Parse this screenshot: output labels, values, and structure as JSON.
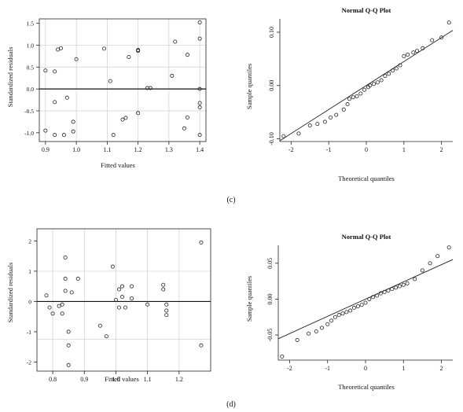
{
  "captions": {
    "c": "(c)",
    "d": "(d)"
  },
  "chart_data": [
    {
      "id": "c_resid",
      "type": "scatter",
      "title": "",
      "xlabel": "Fitted values",
      "ylabel": "Standardized residuals",
      "xlim": [
        0.88,
        1.42
      ],
      "ylim": [
        -1.2,
        1.6
      ],
      "xticks": [
        "0.9",
        "1.0",
        "1.1",
        "1.2",
        "1.3",
        "1.4"
      ],
      "yticks": [
        "-1.0",
        "-0.5",
        "0.0",
        "0.5",
        "1.0",
        "1.5"
      ],
      "grid_x": [
        0.9,
        1.0,
        1.1,
        1.2,
        1.3,
        1.4
      ],
      "grid_y": [
        -0.5,
        0.5,
        1.0
      ],
      "reference_line_y": 0,
      "points": [
        [
          0.9,
          0.42
        ],
        [
          0.9,
          -0.95
        ],
        [
          0.93,
          0.4
        ],
        [
          0.94,
          0.9
        ],
        [
          0.95,
          0.93
        ],
        [
          0.93,
          -0.3
        ],
        [
          0.97,
          -0.2
        ],
        [
          0.93,
          -1.05
        ],
        [
          0.96,
          -1.05
        ],
        [
          0.99,
          -0.75
        ],
        [
          0.99,
          -0.97
        ],
        [
          1.0,
          0.68
        ],
        [
          1.09,
          0.92
        ],
        [
          1.11,
          0.18
        ],
        [
          1.12,
          -1.05
        ],
        [
          1.15,
          -0.7
        ],
        [
          1.16,
          -0.66
        ],
        [
          1.17,
          0.73
        ],
        [
          1.2,
          0.89
        ],
        [
          1.2,
          0.87
        ],
        [
          1.2,
          -0.55
        ],
        [
          1.23,
          0.02
        ],
        [
          1.24,
          0.02
        ],
        [
          1.31,
          0.3
        ],
        [
          1.32,
          1.08
        ],
        [
          1.35,
          -0.9
        ],
        [
          1.36,
          -0.65
        ],
        [
          1.36,
          0.78
        ],
        [
          1.4,
          1.52
        ],
        [
          1.4,
          1.15
        ],
        [
          1.4,
          0.0
        ],
        [
          1.4,
          -0.32
        ],
        [
          1.4,
          -0.42
        ],
        [
          1.4,
          -1.05
        ]
      ]
    },
    {
      "id": "c_qq",
      "type": "scatter",
      "title": "Normal Q-Q Plot",
      "xlabel": "Theoretical quantiles",
      "ylabel": "Sample quantiles",
      "xlim": [
        -2.3,
        2.3
      ],
      "ylim": [
        -0.105,
        0.125
      ],
      "xticks": [
        "-2",
        "-1",
        "0",
        "1",
        "2"
      ],
      "yticks": [
        "-0.10",
        "0.00",
        "0.10"
      ],
      "qq_line": {
        "intercept": 0.0,
        "slope": 0.045
      },
      "points": [
        [
          -2.2,
          -0.095
        ],
        [
          -1.8,
          -0.09
        ],
        [
          -1.5,
          -0.075
        ],
        [
          -1.3,
          -0.072
        ],
        [
          -1.1,
          -0.068
        ],
        [
          -0.95,
          -0.06
        ],
        [
          -0.8,
          -0.055
        ],
        [
          -0.6,
          -0.045
        ],
        [
          -0.5,
          -0.035
        ],
        [
          -0.45,
          -0.025
        ],
        [
          -0.35,
          -0.022
        ],
        [
          -0.25,
          -0.02
        ],
        [
          -0.15,
          -0.015
        ],
        [
          -0.05,
          -0.008
        ],
        [
          0.05,
          -0.003
        ],
        [
          0.1,
          0.0
        ],
        [
          0.2,
          0.003
        ],
        [
          0.3,
          0.006
        ],
        [
          0.4,
          0.01
        ],
        [
          0.5,
          0.018
        ],
        [
          0.6,
          0.022
        ],
        [
          0.7,
          0.028
        ],
        [
          0.8,
          0.032
        ],
        [
          0.9,
          0.038
        ],
        [
          1.0,
          0.055
        ],
        [
          1.1,
          0.058
        ],
        [
          1.25,
          0.062
        ],
        [
          1.35,
          0.065
        ],
        [
          1.5,
          0.07
        ],
        [
          1.75,
          0.085
        ],
        [
          2.0,
          0.09
        ],
        [
          2.2,
          0.118
        ]
      ]
    },
    {
      "id": "d_resid",
      "type": "scatter",
      "title": "",
      "xlabel": "Fitted values",
      "ylabel": "Standardized residuals",
      "xlim": [
        0.75,
        1.3
      ],
      "ylim": [
        -2.3,
        2.4
      ],
      "xticks": [
        "0.8",
        "0.9",
        "1.0",
        "1.1",
        "1.2"
      ],
      "yticks": [
        "-2",
        "-1",
        "0",
        "1",
        "2"
      ],
      "grid_x": [
        0.8,
        0.9,
        1.0,
        1.1,
        1.2
      ],
      "grid_y": [
        -1.25,
        1.0
      ],
      "reference_line_y": 0,
      "points": [
        [
          0.78,
          0.2
        ],
        [
          0.79,
          -0.2
        ],
        [
          0.8,
          -0.4
        ],
        [
          0.82,
          -0.15
        ],
        [
          0.83,
          -0.1
        ],
        [
          0.83,
          -0.4
        ],
        [
          0.84,
          0.35
        ],
        [
          0.84,
          0.75
        ],
        [
          0.84,
          1.45
        ],
        [
          0.85,
          -1.0
        ],
        [
          0.85,
          -1.45
        ],
        [
          0.85,
          -2.1
        ],
        [
          0.86,
          0.3
        ],
        [
          0.88,
          0.75
        ],
        [
          0.95,
          -0.8
        ],
        [
          0.97,
          -1.15
        ],
        [
          0.99,
          1.15
        ],
        [
          1.0,
          0.05
        ],
        [
          1.01,
          0.4
        ],
        [
          1.01,
          -0.2
        ],
        [
          1.02,
          0.5
        ],
        [
          1.02,
          0.15
        ],
        [
          1.03,
          -0.2
        ],
        [
          1.05,
          0.5
        ],
        [
          1.05,
          0.1
        ],
        [
          1.1,
          -0.1
        ],
        [
          1.15,
          0.4
        ],
        [
          1.15,
          0.55
        ],
        [
          1.16,
          -0.3
        ],
        [
          1.16,
          -0.45
        ],
        [
          1.16,
          -0.1
        ],
        [
          1.27,
          1.95
        ],
        [
          1.27,
          -1.45
        ]
      ]
    },
    {
      "id": "d_qq",
      "type": "scatter",
      "title": "Normal Q-Q Plot",
      "xlabel": "Theoretical quantiles",
      "ylabel": "Sample quantiles",
      "xlim": [
        -2.3,
        2.3
      ],
      "ylim": [
        -0.085,
        0.075
      ],
      "xticks": [
        "-2",
        "-1",
        "0",
        "1",
        "2"
      ],
      "yticks": [
        "-0.05",
        "0.00",
        "0.05"
      ],
      "qq_line": {
        "intercept": 0.0,
        "slope": 0.024
      },
      "points": [
        [
          -2.2,
          -0.08
        ],
        [
          -1.8,
          -0.057
        ],
        [
          -1.5,
          -0.048
        ],
        [
          -1.3,
          -0.045
        ],
        [
          -1.15,
          -0.04
        ],
        [
          -1.0,
          -0.035
        ],
        [
          -0.9,
          -0.03
        ],
        [
          -0.8,
          -0.025
        ],
        [
          -0.7,
          -0.022
        ],
        [
          -0.6,
          -0.02
        ],
        [
          -0.5,
          -0.018
        ],
        [
          -0.4,
          -0.016
        ],
        [
          -0.3,
          -0.012
        ],
        [
          -0.2,
          -0.01
        ],
        [
          -0.1,
          -0.008
        ],
        [
          0.0,
          -0.005
        ],
        [
          0.1,
          0.0
        ],
        [
          0.2,
          0.003
        ],
        [
          0.3,
          0.005
        ],
        [
          0.4,
          0.008
        ],
        [
          0.5,
          0.01
        ],
        [
          0.6,
          0.012
        ],
        [
          0.7,
          0.014
        ],
        [
          0.8,
          0.016
        ],
        [
          0.9,
          0.018
        ],
        [
          1.0,
          0.02
        ],
        [
          1.1,
          0.022
        ],
        [
          1.3,
          0.028
        ],
        [
          1.5,
          0.04
        ],
        [
          1.7,
          0.05
        ],
        [
          1.9,
          0.06
        ],
        [
          2.2,
          0.072
        ]
      ]
    }
  ]
}
